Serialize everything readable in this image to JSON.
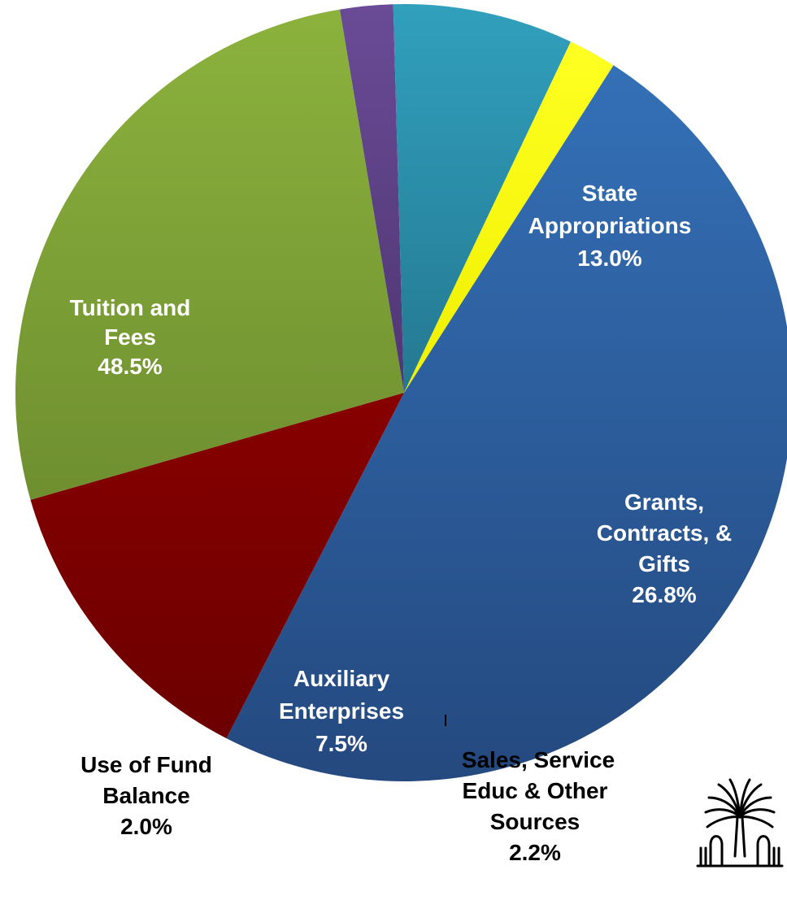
{
  "chart_data": {
    "type": "pie",
    "title": "",
    "slices": [
      {
        "label_lines": [
          "Tuition and",
          "Fees"
        ],
        "percent_text": "48.5%",
        "value": 48.5,
        "color": "#2f5c9c"
      },
      {
        "label_lines": [
          "State",
          "Appropriations"
        ],
        "percent_text": "13.0%",
        "value": 13.0,
        "color": "#7a0000"
      },
      {
        "label_lines": [
          "Grants,",
          "Contracts, &",
          "Gifts"
        ],
        "percent_text": "26.8%",
        "value": 26.8,
        "color": "#7e9f38"
      },
      {
        "label_lines": [
          "Sales, Service",
          "Educ & Other",
          "Sources"
        ],
        "percent_text": "2.2%",
        "value": 2.2,
        "color": "#5b3f83"
      },
      {
        "label_lines": [
          "Auxiliary",
          "Enterprises"
        ],
        "percent_text": "7.5%",
        "value": 7.5,
        "color": "#2b8aa2"
      },
      {
        "label_lines": [
          "Use of Fund",
          "Balance"
        ],
        "percent_text": "2.0%",
        "value": 2.0,
        "color": "#ffff00"
      }
    ],
    "legend": "none",
    "data_labels": "on-slice and outside with leader line"
  },
  "logo": {
    "icon": "palmetto-tree-logo-icon"
  }
}
